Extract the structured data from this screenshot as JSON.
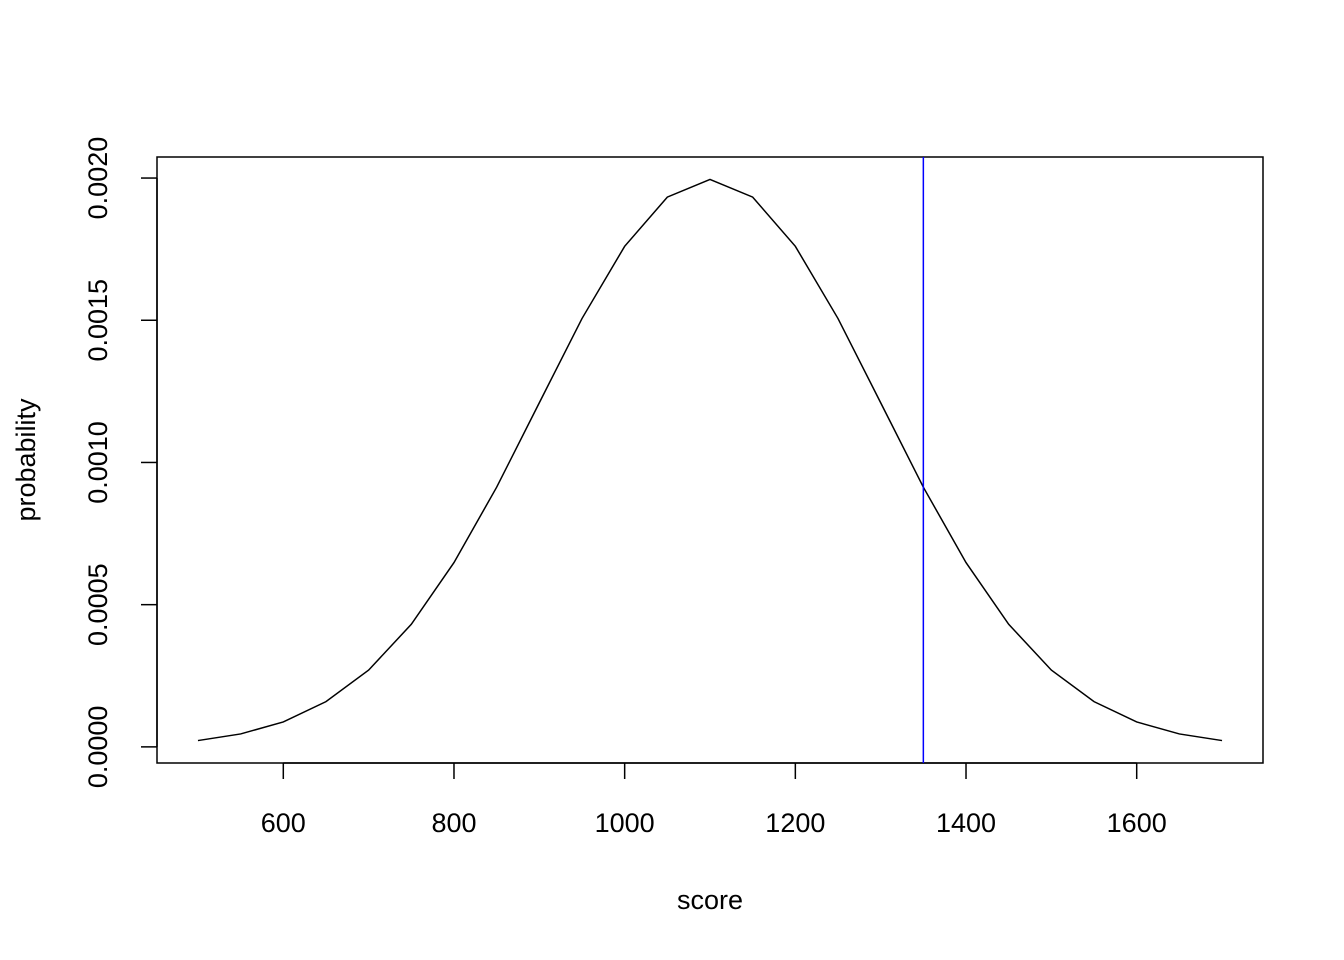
{
  "chart_data": {
    "type": "line",
    "x_label": "score",
    "y_label": "probability",
    "x": [
      500,
      550,
      600,
      650,
      700,
      750,
      800,
      850,
      900,
      950,
      1000,
      1050,
      1100,
      1150,
      1200,
      1250,
      1300,
      1350,
      1400,
      1450,
      1500,
      1550,
      1600,
      1650,
      1700
    ],
    "values": [
      2.22e-05,
      4.55e-05,
      8.76e-05,
      0.000159,
      0.00027,
      0.000431,
      0.000648,
      0.000913,
      0.00121,
      0.001506,
      0.00176,
      0.001933,
      0.001995,
      0.001933,
      0.00176,
      0.001506,
      0.00121,
      0.000913,
      0.000648,
      0.000431,
      0.00027,
      0.000159,
      8.76e-05,
      4.55e-05,
      2.22e-05
    ],
    "color": "#000000",
    "vline": {
      "value": 1350,
      "color": "#0000ff"
    },
    "xlim": [
      452,
      1748
    ],
    "xticks": [
      600,
      800,
      1000,
      1200,
      1400,
      1600
    ],
    "ylim": [
      -5.67e-05,
      0.002074
    ],
    "yticks": [
      {
        "value": 0,
        "label": "0.0000"
      },
      {
        "value": 0.0005,
        "label": "0.0005"
      },
      {
        "value": 0.001,
        "label": "0.0010"
      },
      {
        "value": 0.0015,
        "label": "0.0015"
      },
      {
        "value": 0.002,
        "label": "0.0020"
      }
    ]
  }
}
